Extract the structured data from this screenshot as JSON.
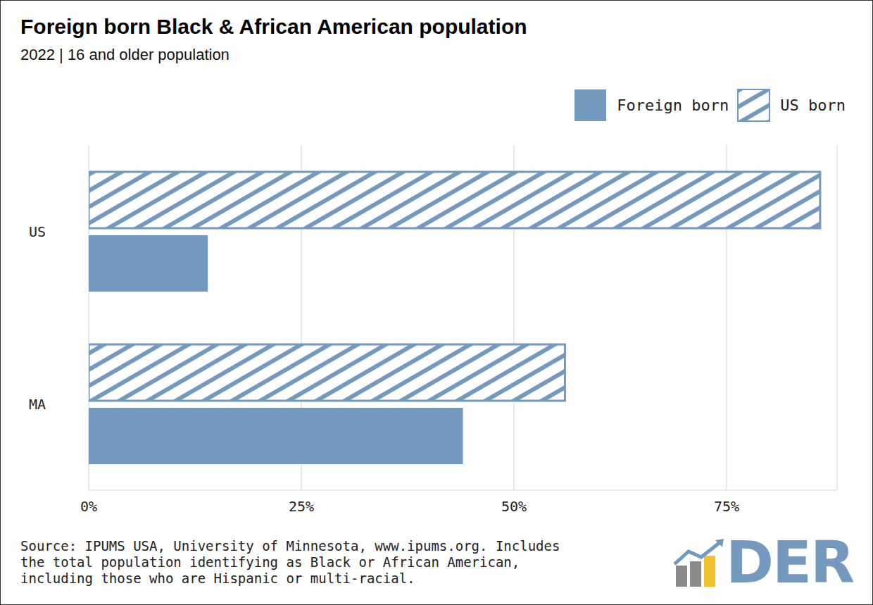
{
  "chart_data": {
    "type": "bar",
    "orientation": "horizontal",
    "title": "Foreign born Black & African American population",
    "subtitle": "2022 | 16 and older population",
    "categories": [
      "US",
      "MA"
    ],
    "series": [
      {
        "name": "Foreign born",
        "color": "#7499bf",
        "values": [
          14,
          44
        ]
      },
      {
        "name": "US born",
        "color": "#7499bf",
        "values": [
          86,
          56
        ]
      }
    ],
    "xlim": [
      0,
      88
    ],
    "xticks": [
      {
        "value": 0,
        "label": "0%"
      },
      {
        "value": 25,
        "label": "25%"
      },
      {
        "value": 50,
        "label": "50%"
      },
      {
        "value": 75,
        "label": "75%"
      }
    ],
    "grid": true,
    "legend": "top right",
    "source": [
      "Source: IPUMS USA, University of Minnesota, www.ipums.org. Includes",
      "the total population identifying as Black or African American,",
      "including those who are Hispanic or multi-racial."
    ],
    "logo": "DER"
  }
}
